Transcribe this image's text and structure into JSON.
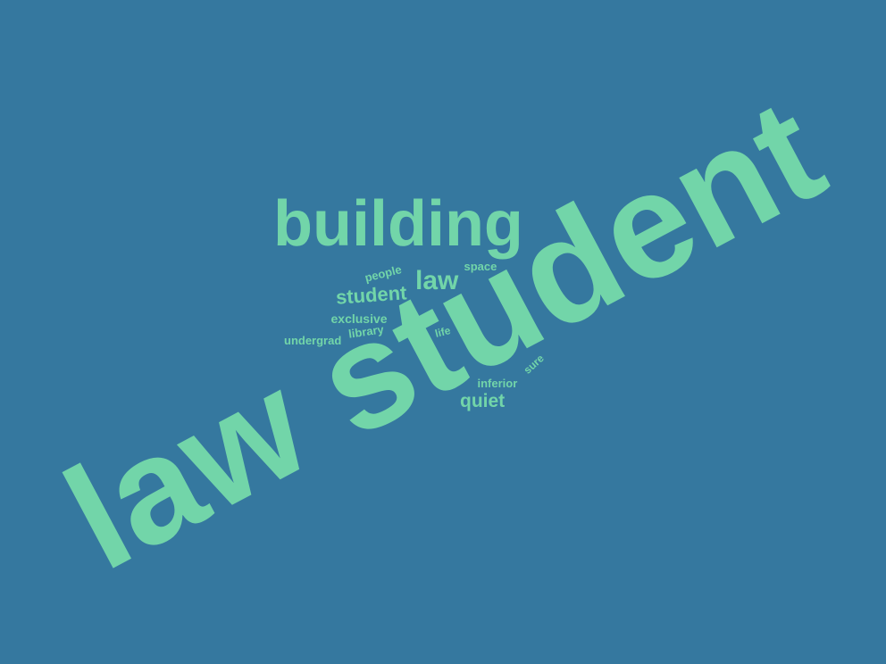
{
  "background_color": "#35789F",
  "word_color": "#72D5A9",
  "words": [
    {
      "text": "law student"
    },
    {
      "text": "building"
    },
    {
      "text": "law"
    },
    {
      "text": "student"
    },
    {
      "text": "people"
    },
    {
      "text": "space"
    },
    {
      "text": "exclusive"
    },
    {
      "text": "library"
    },
    {
      "text": "undergrad"
    },
    {
      "text": "life"
    },
    {
      "text": "sure"
    },
    {
      "text": "inferior"
    },
    {
      "text": "quiet"
    }
  ]
}
